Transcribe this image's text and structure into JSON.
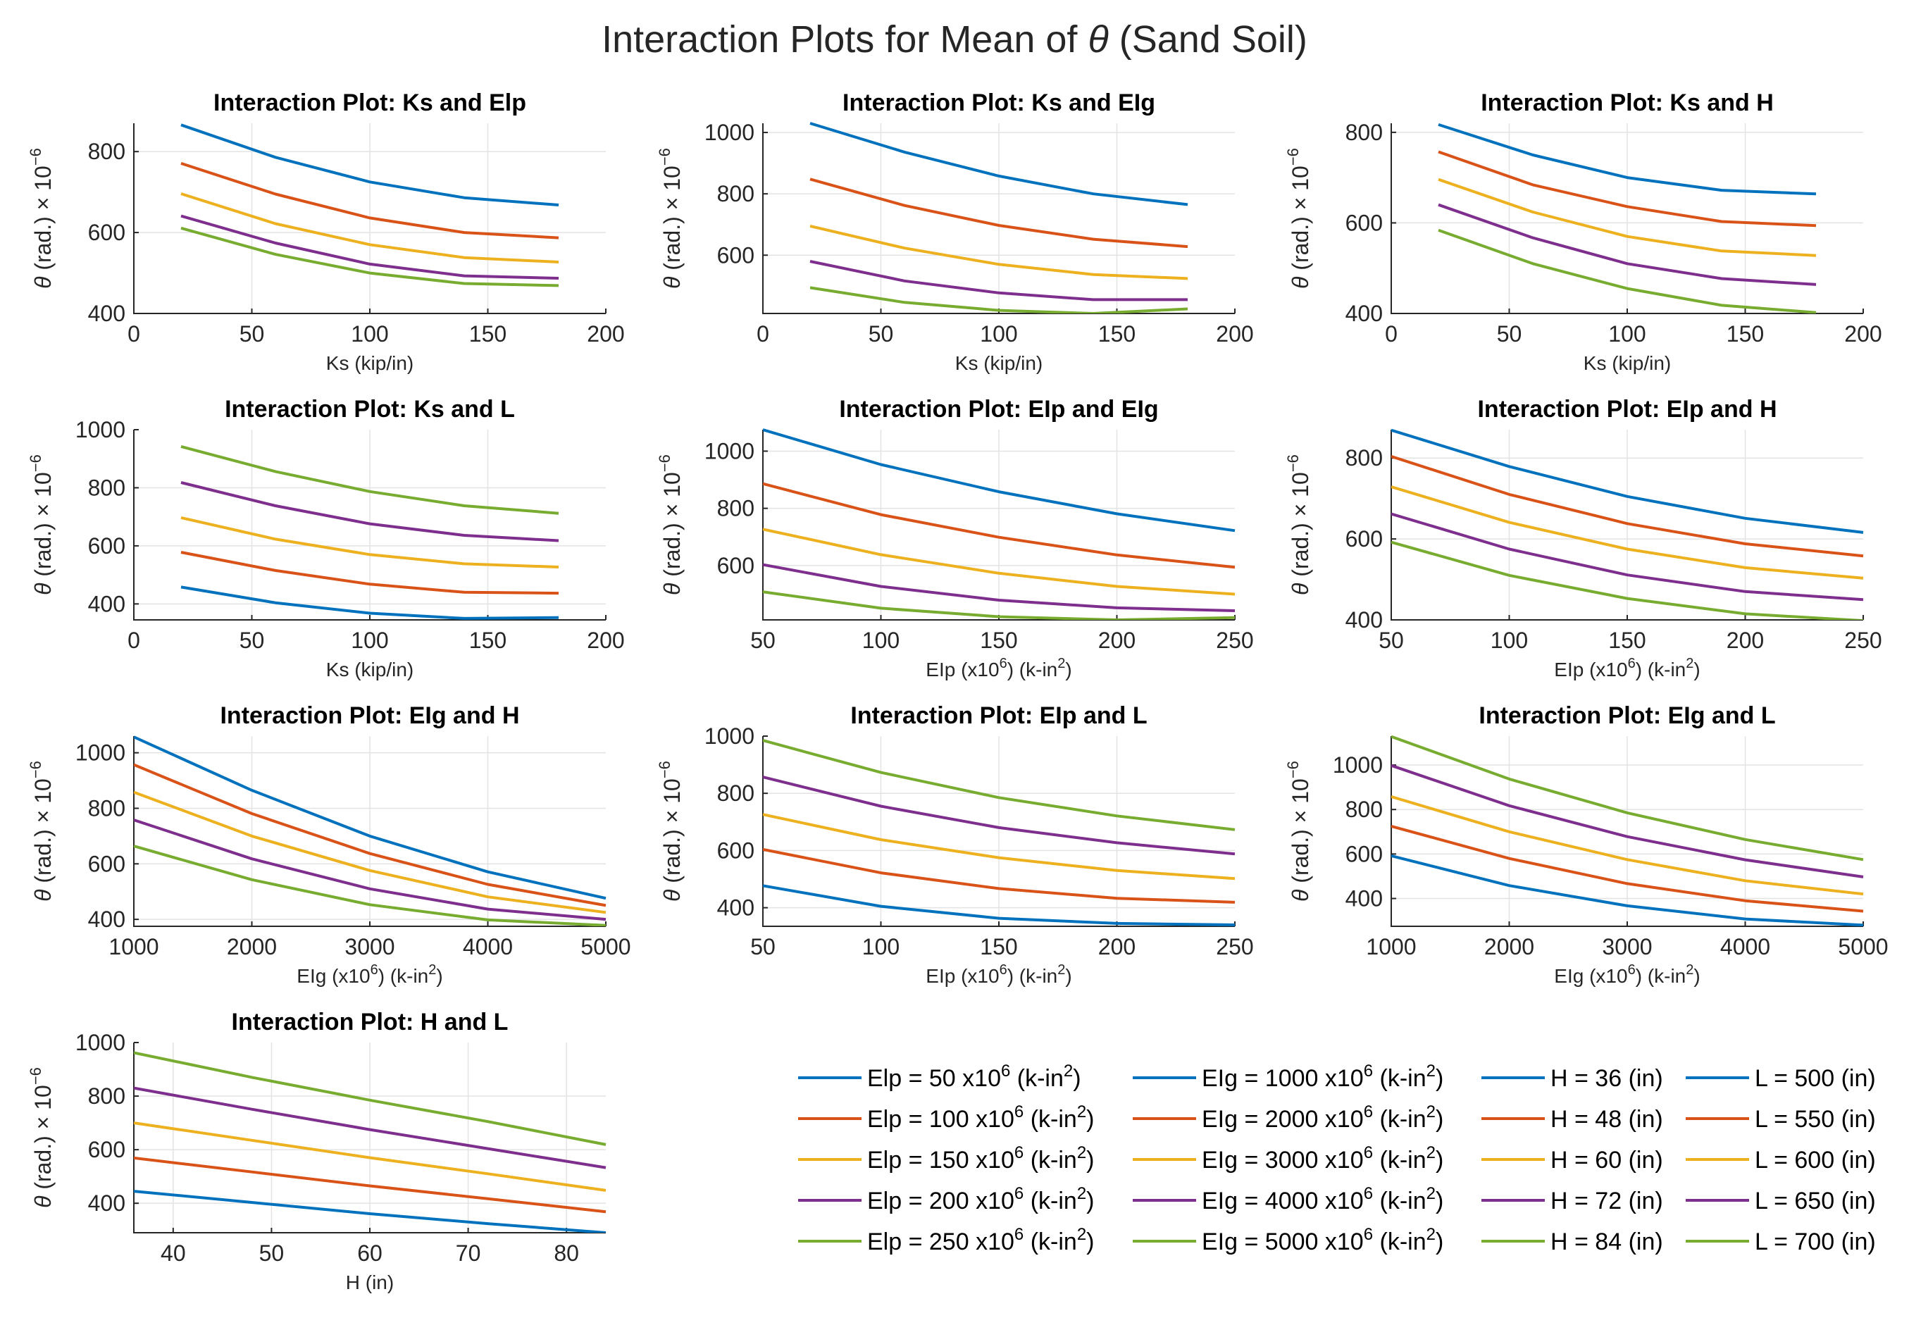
{
  "figure": {
    "title_parts": {
      "before": "Interaction Plots for Mean of ",
      "symbol": "θ",
      "after": " (Sand Soil)"
    }
  },
  "colors": [
    "#0072BD",
    "#D95319",
    "#EDB120",
    "#7E2F8E",
    "#77AC30"
  ],
  "y_label": {
    "symbol": "θ",
    "text": " (rad.) × 10",
    "exp": "−6"
  },
  "chart_data": [
    {
      "type": "line",
      "title": "Interaction Plot: Ks and Elp",
      "xlabel": {
        "main": "Ks (kip/in)"
      },
      "x": [
        20,
        60,
        100,
        140,
        180
      ],
      "xlim": [
        0,
        200
      ],
      "xticks": [
        0,
        50,
        100,
        150,
        200
      ],
      "ylim": [
        400,
        870
      ],
      "yticks": [
        400,
        600,
        800
      ],
      "series": [
        {
          "name": "Elp = 50 x10^6 (k-in^2)",
          "values": [
            866,
            786,
            725,
            686,
            668
          ]
        },
        {
          "name": "Elp = 100 x10^6 (k-in^2)",
          "values": [
            771,
            695,
            636,
            600,
            587
          ]
        },
        {
          "name": "Elp = 150 x10^6 (k-in^2)",
          "values": [
            696,
            622,
            570,
            538,
            527
          ]
        },
        {
          "name": "Elp = 200 x10^6 (k-in^2)",
          "values": [
            641,
            574,
            522,
            493,
            487
          ]
        },
        {
          "name": "Elp = 250 x10^6 (k-in^2)",
          "values": [
            611,
            546,
            500,
            474,
            469
          ]
        }
      ]
    },
    {
      "type": "line",
      "title": "Interaction Plot: Ks and EIg",
      "xlabel": {
        "main": "Ks (kip/in)"
      },
      "x": [
        20,
        60,
        100,
        140,
        180
      ],
      "xlim": [
        0,
        200
      ],
      "xticks": [
        0,
        50,
        100,
        150,
        200
      ],
      "ylim": [
        410,
        1030
      ],
      "yticks": [
        600,
        800,
        1000
      ],
      "series": [
        {
          "name": "EIg = 1000 x10^6 (k-in^2)",
          "values": [
            1030,
            936,
            858,
            800,
            765
          ]
        },
        {
          "name": "EIg = 2000 x10^6 (k-in^2)",
          "values": [
            848,
            762,
            697,
            652,
            628
          ]
        },
        {
          "name": "EIg = 3000 x10^6 (k-in^2)",
          "values": [
            695,
            623,
            570,
            537,
            524
          ]
        },
        {
          "name": "EIg = 4000 x10^6 (k-in^2)",
          "values": [
            580,
            516,
            477,
            455,
            455
          ]
        },
        {
          "name": "EIg = 5000 x10^6 (k-in^2)",
          "values": [
            494,
            446,
            420,
            410,
            425
          ]
        }
      ]
    },
    {
      "type": "line",
      "title": "Interaction Plot: Ks and H",
      "xlabel": {
        "main": "Ks (kip/in)"
      },
      "x": [
        20,
        60,
        100,
        140,
        180
      ],
      "xlim": [
        0,
        200
      ],
      "xticks": [
        0,
        50,
        100,
        150,
        200
      ],
      "ylim": [
        400,
        820
      ],
      "yticks": [
        400,
        600,
        800
      ],
      "series": [
        {
          "name": "H = 36 (in)",
          "values": [
            817,
            750,
            700,
            672,
            664
          ]
        },
        {
          "name": "H = 48 (in)",
          "values": [
            757,
            684,
            636,
            603,
            594
          ]
        },
        {
          "name": "H = 60 (in)",
          "values": [
            696,
            624,
            570,
            538,
            528
          ]
        },
        {
          "name": "H = 72 (in)",
          "values": [
            640,
            567,
            510,
            477,
            464
          ]
        },
        {
          "name": "H = 84 (in)",
          "values": [
            584,
            510,
            455,
            418,
            402
          ]
        }
      ]
    },
    {
      "type": "line",
      "title": "Interaction Plot: Ks and L",
      "xlabel": {
        "main": "Ks (kip/in)"
      },
      "x": [
        20,
        60,
        100,
        140,
        180
      ],
      "xlim": [
        0,
        200
      ],
      "xticks": [
        0,
        50,
        100,
        150,
        200
      ],
      "ylim": [
        345,
        1000
      ],
      "yticks": [
        400,
        600,
        800,
        1000
      ],
      "series": [
        {
          "name": "L = 500 (in)",
          "values": [
            458,
            404,
            368,
            350,
            353
          ]
        },
        {
          "name": "L = 550 (in)",
          "values": [
            578,
            515,
            468,
            440,
            437
          ]
        },
        {
          "name": "L = 600 (in)",
          "values": [
            697,
            623,
            570,
            538,
            527
          ]
        },
        {
          "name": "L = 650 (in)",
          "values": [
            818,
            738,
            676,
            636,
            618
          ]
        },
        {
          "name": "L = 700 (in)",
          "values": [
            942,
            856,
            787,
            738,
            712
          ]
        }
      ]
    },
    {
      "type": "line",
      "title": "Interaction Plot: EIp and EIg",
      "xlabel": {
        "main": "EIp (x10",
        "sup": "6",
        "mid": ") (k-in",
        "sup2": "2",
        "end": ")"
      },
      "x": [
        50,
        100,
        150,
        200,
        250
      ],
      "xlim": [
        50,
        250
      ],
      "xticks": [
        50,
        100,
        150,
        200,
        250
      ],
      "ylim": [
        410,
        1075
      ],
      "yticks": [
        600,
        800,
        1000
      ],
      "series": [
        {
          "name": "EIg = 1000 x10^6 (k-in^2)",
          "values": [
            1075,
            953,
            858,
            781,
            722
          ]
        },
        {
          "name": "EIg = 2000 x10^6 (k-in^2)",
          "values": [
            886,
            778,
            699,
            637,
            594
          ]
        },
        {
          "name": "EIg = 3000 x10^6 (k-in^2)",
          "values": [
            727,
            638,
            573,
            527,
            500
          ]
        },
        {
          "name": "EIg = 4000 x10^6 (k-in^2)",
          "values": [
            603,
            527,
            479,
            452,
            442
          ]
        },
        {
          "name": "EIg = 5000 x10^6 (k-in^2)",
          "values": [
            508,
            451,
            421,
            410,
            418
          ]
        }
      ]
    },
    {
      "type": "line",
      "title": "Interaction Plot: EIp and H",
      "xlabel": {
        "main": "EIp (x10",
        "sup": "6",
        "mid": ") (k-in",
        "sup2": "2",
        "end": ")"
      },
      "x": [
        50,
        100,
        150,
        200,
        250
      ],
      "xlim": [
        50,
        250
      ],
      "xticks": [
        50,
        100,
        150,
        200,
        250
      ],
      "ylim": [
        400,
        870
      ],
      "yticks": [
        400,
        600,
        800
      ],
      "series": [
        {
          "name": "H = 36 (in)",
          "values": [
            869,
            779,
            705,
            651,
            616
          ]
        },
        {
          "name": "H = 48 (in)",
          "values": [
            804,
            710,
            638,
            588,
            558
          ]
        },
        {
          "name": "H = 60 (in)",
          "values": [
            729,
            641,
            575,
            529,
            503
          ]
        },
        {
          "name": "H = 72 (in)",
          "values": [
            662,
            575,
            511,
            470,
            450
          ]
        },
        {
          "name": "H = 84 (in)",
          "values": [
            592,
            510,
            453,
            415,
            398
          ]
        }
      ]
    },
    {
      "type": "line",
      "title": "Interaction Plot: EIg and H",
      "xlabel": {
        "main": "EIg (x10",
        "sup": "6",
        "mid": ") (k-in",
        "sup2": "2",
        "end": ")"
      },
      "x": [
        1000,
        2000,
        3000,
        4000,
        5000
      ],
      "xlim": [
        1000,
        5000
      ],
      "xticks": [
        1000,
        2000,
        3000,
        4000,
        5000
      ],
      "ylim": [
        375,
        1060
      ],
      "yticks": [
        400,
        600,
        800,
        1000
      ],
      "series": [
        {
          "name": "H = 36 (in)",
          "values": [
            1057,
            865,
            700,
            571,
            476
          ]
        },
        {
          "name": "H = 48 (in)",
          "values": [
            957,
            781,
            637,
            526,
            450
          ]
        },
        {
          "name": "H = 60 (in)",
          "values": [
            858,
            700,
            576,
            481,
            425
          ]
        },
        {
          "name": "H = 72 (in)",
          "values": [
            758,
            618,
            510,
            437,
            400
          ]
        },
        {
          "name": "H = 84 (in)",
          "values": [
            664,
            543,
            453,
            398,
            378
          ]
        }
      ]
    },
    {
      "type": "line",
      "title": "Interaction Plot: EIp and L",
      "xlabel": {
        "main": "EIp (x10",
        "sup": "6",
        "mid": ") (k-in",
        "sup2": "2",
        "end": ")"
      },
      "x": [
        50,
        100,
        150,
        200,
        250
      ],
      "xlim": [
        50,
        250
      ],
      "xticks": [
        50,
        100,
        150,
        200,
        250
      ],
      "ylim": [
        335,
        1000
      ],
      "yticks": [
        400,
        600,
        800,
        1000
      ],
      "series": [
        {
          "name": "L = 500 (in)",
          "values": [
            477,
            405,
            363,
            345,
            340
          ]
        },
        {
          "name": "L = 550 (in)",
          "values": [
            604,
            522,
            467,
            433,
            419
          ]
        },
        {
          "name": "L = 600 (in)",
          "values": [
            726,
            638,
            575,
            530,
            502
          ]
        },
        {
          "name": "L = 650 (in)",
          "values": [
            857,
            755,
            680,
            627,
            588
          ]
        },
        {
          "name": "L = 700 (in)",
          "values": [
            985,
            873,
            785,
            721,
            673
          ]
        }
      ]
    },
    {
      "type": "line",
      "title": "Interaction Plot: EIg and L",
      "xlabel": {
        "main": "EIg (x10",
        "sup": "6",
        "mid": ") (k-in",
        "sup2": "2",
        "end": ")"
      },
      "x": [
        1000,
        2000,
        3000,
        4000,
        5000
      ],
      "xlim": [
        1000,
        5000
      ],
      "xticks": [
        1000,
        2000,
        3000,
        4000,
        5000
      ],
      "ylim": [
        275,
        1130
      ],
      "yticks": [
        400,
        600,
        800,
        1000
      ],
      "series": [
        {
          "name": "L = 500 (in)",
          "values": [
            592,
            458,
            367,
            308,
            280
          ]
        },
        {
          "name": "L = 550 (in)",
          "values": [
            725,
            580,
            467,
            390,
            343
          ]
        },
        {
          "name": "L = 600 (in)",
          "values": [
            858,
            700,
            575,
            480,
            420
          ]
        },
        {
          "name": "L = 650 (in)",
          "values": [
            998,
            817,
            678,
            574,
            497
          ]
        },
        {
          "name": "L = 700 (in)",
          "values": [
            1128,
            937,
            785,
            665,
            575
          ]
        }
      ]
    },
    {
      "type": "line",
      "title": "Interaction Plot: H and L",
      "xlabel": {
        "main": "H (in)"
      },
      "x": [
        36,
        48,
        60,
        72,
        84
      ],
      "xlim": [
        36,
        84
      ],
      "xticks": [
        40,
        50,
        60,
        70,
        80
      ],
      "ylim": [
        290,
        1000
      ],
      "yticks": [
        400,
        600,
        800,
        1000
      ],
      "series": [
        {
          "name": "L = 500 (in)",
          "values": [
            445,
            403,
            361,
            324,
            290
          ]
        },
        {
          "name": "L = 550 (in)",
          "values": [
            569,
            517,
            465,
            417,
            368
          ]
        },
        {
          "name": "L = 600 (in)",
          "values": [
            700,
            635,
            570,
            510,
            448
          ]
        },
        {
          "name": "L = 650 (in)",
          "values": [
            830,
            751,
            675,
            604,
            533
          ]
        },
        {
          "name": "L = 700 (in)",
          "values": [
            962,
            870,
            785,
            705,
            619
          ]
        }
      ]
    }
  ],
  "legend": {
    "columns": [
      [
        {
          "pre": "Elp = 50 x10",
          "sup": "6",
          "mid": " (k-in",
          "sup2": "2",
          "post": ")"
        },
        {
          "pre": "Elp = 100 x10",
          "sup": "6",
          "mid": " (k-in",
          "sup2": "2",
          "post": ")"
        },
        {
          "pre": "Elp = 150 x10",
          "sup": "6",
          "mid": " (k-in",
          "sup2": "2",
          "post": ")"
        },
        {
          "pre": "Elp = 200 x10",
          "sup": "6",
          "mid": " (k-in",
          "sup2": "2",
          "post": ")"
        },
        {
          "pre": "Elp = 250 x10",
          "sup": "6",
          "mid": " (k-in",
          "sup2": "2",
          "post": ")"
        }
      ],
      [
        {
          "pre": "EIg = 1000 x10",
          "sup": "6",
          "mid": " (k-in",
          "sup2": "2",
          "post": ")"
        },
        {
          "pre": "EIg = 2000 x10",
          "sup": "6",
          "mid": " (k-in",
          "sup2": "2",
          "post": ")"
        },
        {
          "pre": "EIg = 3000 x10",
          "sup": "6",
          "mid": " (k-in",
          "sup2": "2",
          "post": ")"
        },
        {
          "pre": "EIg = 4000 x10",
          "sup": "6",
          "mid": " (k-in",
          "sup2": "2",
          "post": ")"
        },
        {
          "pre": "EIg = 5000 x10",
          "sup": "6",
          "mid": " (k-in",
          "sup2": "2",
          "post": ")"
        }
      ],
      [
        {
          "pre": "H = 36 (in)"
        },
        {
          "pre": "H = 48 (in)"
        },
        {
          "pre": "H = 60 (in)"
        },
        {
          "pre": "H = 72 (in)"
        },
        {
          "pre": "H = 84 (in)"
        }
      ],
      [
        {
          "pre": "L = 500 (in)"
        },
        {
          "pre": "L = 550 (in)"
        },
        {
          "pre": "L = 600 (in)"
        },
        {
          "pre": "L = 650 (in)"
        },
        {
          "pre": "L = 700 (in)"
        }
      ]
    ]
  }
}
